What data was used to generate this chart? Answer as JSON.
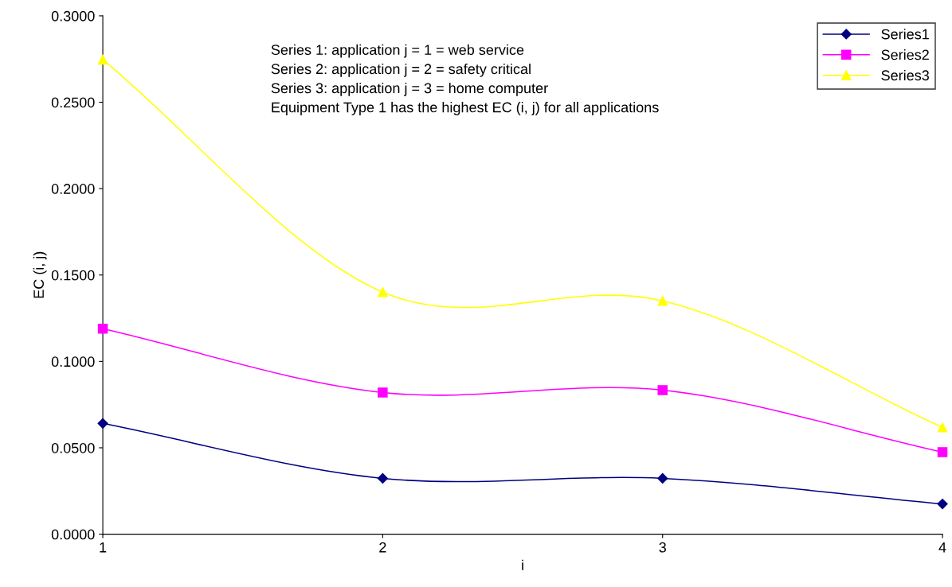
{
  "chart_data": {
    "type": "line",
    "xlabel": "i",
    "ylabel": "EC (i, j)",
    "x": [
      1,
      2,
      3,
      4
    ],
    "series": [
      {
        "name": "Series1",
        "color": "#000080",
        "marker": "diamond",
        "values": [
          0.0641,
          0.0323,
          0.0323,
          0.0175
        ]
      },
      {
        "name": "Series2",
        "color": "#ff00ff",
        "marker": "square",
        "values": [
          0.1189,
          0.082,
          0.0834,
          0.0475
        ]
      },
      {
        "name": "Series3",
        "color": "#ffff00",
        "marker": "triangle",
        "values": [
          0.2747,
          0.1401,
          0.135,
          0.0618
        ]
      }
    ],
    "xlim": [
      1,
      4
    ],
    "xticks": [
      1,
      2,
      3,
      4
    ],
    "ylim": [
      0,
      0.3
    ],
    "yticks": [
      {
        "value": 0,
        "label": "0.0000"
      },
      {
        "value": 0.05,
        "label": "0.0500"
      },
      {
        "value": 0.1,
        "label": "0.1000"
      },
      {
        "value": 0.15,
        "label": "0.1500"
      },
      {
        "value": 0.2,
        "label": "0.2000"
      },
      {
        "value": 0.25,
        "label": "0.2500"
      },
      {
        "value": 0.3,
        "label": "0.3000"
      }
    ],
    "annotations": [
      "Series 1: application j = 1 = web service",
      "Series 2: application j = 2 = safety critical",
      "Series 3: application j = 3 = home computer",
      "Equipment Type 1 has the highest EC (i, j) for all applications"
    ],
    "grid": false,
    "legend": "top right",
    "line_style": "solid"
  }
}
